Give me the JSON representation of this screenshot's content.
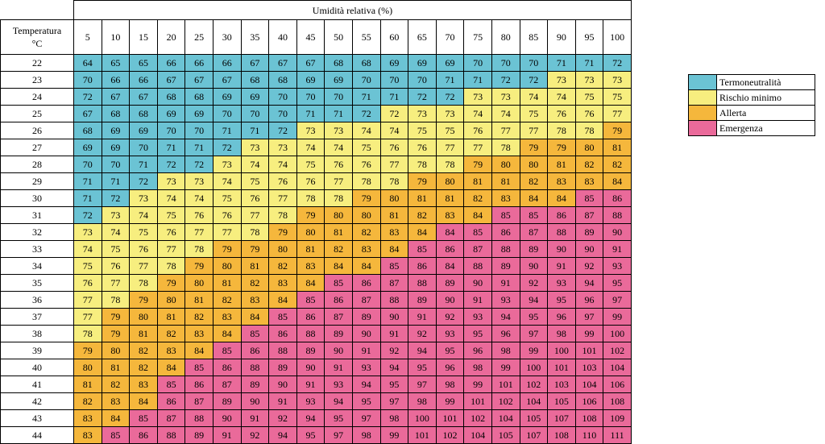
{
  "chart_data": {
    "type": "heatmap",
    "title": "",
    "column_header": "Umidità relativa (%)",
    "row_header": "Temperatura °C",
    "x": [
      5,
      10,
      15,
      20,
      25,
      30,
      35,
      40,
      45,
      50,
      55,
      60,
      65,
      70,
      75,
      80,
      85,
      90,
      95,
      100
    ],
    "y": [
      22,
      23,
      24,
      25,
      26,
      27,
      28,
      29,
      30,
      31,
      32,
      33,
      34,
      35,
      36,
      37,
      38,
      39,
      40,
      41,
      42,
      43,
      44
    ],
    "values": [
      [
        64,
        65,
        65,
        66,
        66,
        66,
        67,
        67,
        67,
        68,
        68,
        69,
        69,
        69,
        70,
        70,
        70,
        71,
        71,
        72
      ],
      [
        70,
        66,
        66,
        67,
        67,
        67,
        68,
        68,
        69,
        69,
        70,
        70,
        70,
        71,
        71,
        72,
        72,
        73,
        73,
        73
      ],
      [
        72,
        67,
        67,
        68,
        68,
        69,
        69,
        70,
        70,
        70,
        71,
        71,
        72,
        72,
        73,
        73,
        74,
        74,
        75,
        75
      ],
      [
        67,
        68,
        68,
        69,
        69,
        70,
        70,
        70,
        71,
        71,
        72,
        72,
        73,
        73,
        74,
        74,
        75,
        76,
        76,
        77
      ],
      [
        68,
        69,
        69,
        70,
        70,
        71,
        71,
        72,
        73,
        73,
        74,
        74,
        75,
        75,
        76,
        77,
        77,
        78,
        78,
        79
      ],
      [
        69,
        69,
        70,
        71,
        71,
        72,
        73,
        73,
        74,
        74,
        75,
        76,
        76,
        77,
        77,
        78,
        79,
        79,
        80,
        81
      ],
      [
        70,
        70,
        71,
        72,
        72,
        73,
        74,
        74,
        75,
        76,
        76,
        77,
        78,
        78,
        79,
        80,
        80,
        81,
        82,
        82
      ],
      [
        71,
        71,
        72,
        73,
        73,
        74,
        75,
        76,
        76,
        77,
        78,
        78,
        79,
        80,
        81,
        81,
        82,
        83,
        83,
        84
      ],
      [
        71,
        72,
        73,
        74,
        74,
        75,
        76,
        77,
        78,
        78,
        79,
        80,
        81,
        81,
        82,
        83,
        84,
        84,
        85,
        86
      ],
      [
        72,
        73,
        74,
        75,
        76,
        76,
        77,
        78,
        79,
        80,
        80,
        81,
        82,
        83,
        84,
        85,
        85,
        86,
        87,
        88
      ],
      [
        73,
        74,
        75,
        76,
        77,
        77,
        78,
        79,
        80,
        81,
        82,
        83,
        84,
        84,
        85,
        86,
        87,
        88,
        89,
        90
      ],
      [
        74,
        75,
        76,
        77,
        78,
        79,
        79,
        80,
        81,
        82,
        83,
        84,
        85,
        86,
        87,
        88,
        89,
        90,
        90,
        91
      ],
      [
        75,
        76,
        77,
        78,
        79,
        80,
        81,
        82,
        83,
        84,
        84,
        85,
        86,
        84,
        88,
        89,
        90,
        91,
        92,
        93
      ],
      [
        76,
        77,
        78,
        79,
        80,
        81,
        82,
        83,
        84,
        85,
        86,
        87,
        88,
        89,
        90,
        91,
        92,
        93,
        94,
        95
      ],
      [
        77,
        78,
        79,
        80,
        81,
        82,
        83,
        84,
        85,
        86,
        87,
        88,
        89,
        90,
        91,
        93,
        94,
        95,
        96,
        97
      ],
      [
        77,
        79,
        80,
        81,
        82,
        83,
        84,
        85,
        86,
        87,
        89,
        90,
        91,
        92,
        93,
        94,
        95,
        96,
        97,
        99
      ],
      [
        78,
        79,
        81,
        82,
        83,
        84,
        85,
        86,
        88,
        89,
        90,
        91,
        92,
        93,
        95,
        96,
        97,
        98,
        99,
        100
      ],
      [
        79,
        80,
        82,
        83,
        84,
        85,
        86,
        88,
        89,
        90,
        91,
        92,
        94,
        95,
        96,
        98,
        99,
        100,
        101,
        102
      ],
      [
        80,
        81,
        82,
        84,
        85,
        86,
        88,
        89,
        90,
        91,
        93,
        94,
        95,
        96,
        98,
        99,
        100,
        101,
        103,
        104
      ],
      [
        81,
        82,
        83,
        85,
        86,
        87,
        89,
        90,
        91,
        93,
        94,
        95,
        97,
        98,
        99,
        101,
        102,
        103,
        104,
        106
      ],
      [
        82,
        83,
        84,
        86,
        87,
        89,
        90,
        91,
        93,
        94,
        95,
        97,
        98,
        99,
        101,
        102,
        104,
        105,
        106,
        108
      ],
      [
        83,
        84,
        85,
        87,
        88,
        90,
        91,
        92,
        94,
        95,
        97,
        98,
        100,
        101,
        102,
        104,
        105,
        107,
        108,
        109
      ],
      [
        83,
        85,
        86,
        88,
        89,
        91,
        92,
        94,
        95,
        97,
        98,
        99,
        101,
        102,
        104,
        105,
        107,
        108,
        110,
        111
      ]
    ],
    "categories_grid": [
      "TTTTTTTTTTTTTTTTTTTT",
      "TTTTTTTTTTTTTTTTTRRR",
      "TTTTTTTTTTTTTTRRRRRR",
      "TTTTTTTTTTTRRRRRRRRR",
      "TTTTTTTTRRRRRRRRRRRA",
      "TTTTTTRRRRRRRRRRAAAA",
      "TTTTTRRRRRRRRRAAAAAA",
      "TTTRRRRRRRRRAAAAAAAA",
      "TTRRRRRRRRAAAAAAAAEE",
      "TRRRRRRRAAAAAAAEEEEE",
      "RRRRRRRAAAAAAEEEEEEE",
      "RRRRRAAAAAAAEEEEEEEE",
      "RRRRAAAAAAAEEEEEEEEE",
      "RRRAAAAAAEEEEEEEEEEE",
      "RRAAAAAAEEEEEEEEEEEE",
      "RAAAAAAEEEEEEEEEEEEE",
      "RAAAAAEEEEEEEEEEEEEE",
      "AAAAAEEEEEEEEEEEEEEE",
      "AAAAEEEEEEEEEEEEEEEE",
      "AAAEEEEEEEEEEEEEEEEE",
      "AAAEEEEEEEEEEEEEEEEE",
      "AAEEEEEEEEEEEEEEEEEE",
      "AEEEEEEEEEEEEEEEEEEE"
    ],
    "legend": [
      {
        "code": "T",
        "label": "Termoneutralità",
        "color": "#6bc3d4"
      },
      {
        "code": "R",
        "label": "Rischio minimo",
        "color": "#f7ee7f"
      },
      {
        "code": "A",
        "label": "Allerta",
        "color": "#f5b73c"
      },
      {
        "code": "E",
        "label": "Emergenza",
        "color": "#ea6a9a"
      }
    ],
    "legend_placement": "right"
  }
}
